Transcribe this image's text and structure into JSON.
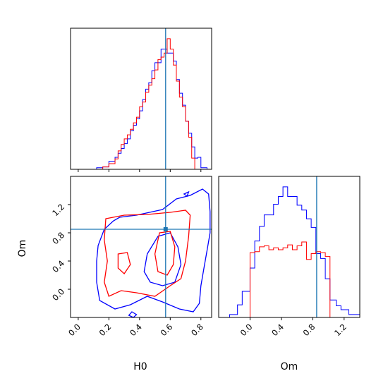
{
  "chart_data": {
    "type": "corner",
    "parameters": [
      "H0",
      "Om"
    ],
    "truths": {
      "H0": 0.57,
      "Om": 0.85
    },
    "colors": {
      "blue": "#0000ff",
      "red": "#ff0000",
      "truth": "#1f77b4"
    },
    "H0": {
      "xlabel": "H0",
      "ticks": [
        "0.0",
        "0.2",
        "0.4",
        "0.6",
        "0.8"
      ],
      "xlim": [
        -0.05,
        0.87
      ],
      "bin_edges": [
        0.12,
        0.16,
        0.2,
        0.24,
        0.26,
        0.28,
        0.3,
        0.32,
        0.34,
        0.36,
        0.38,
        0.4,
        0.42,
        0.44,
        0.46,
        0.48,
        0.5,
        0.52,
        0.54,
        0.56,
        0.58,
        0.6,
        0.62,
        0.64,
        0.66,
        0.68,
        0.7,
        0.72,
        0.74,
        0.76,
        0.78,
        0.8,
        0.84
      ],
      "series": [
        {
          "color": "blue",
          "counts": [
            0.2,
            0.3,
            1.0,
            1.5,
            2.0,
            2.6,
            3.2,
            3.8,
            4.8,
            5.5,
            6.3,
            7.3,
            8.7,
            10.0,
            10.8,
            12.3,
            13.3,
            13.3,
            15.0,
            15.0,
            14.5,
            14.5,
            13.5,
            11.2,
            9.5,
            8.0,
            6.0,
            4.5,
            2.8,
            1.4,
            1.5,
            0.2
          ]
        },
        {
          "color": "red",
          "counts": [
            0.0,
            0.3,
            0.7,
            1.3,
            2.3,
            3.1,
            3.8,
            4.3,
            5.0,
            5.8,
            6.5,
            7.8,
            8.4,
            9.6,
            10.5,
            11.3,
            12.4,
            13.7,
            14.0,
            14.5,
            16.3,
            15.0,
            13.0,
            11.0,
            9.0,
            7.8,
            6.0,
            4.0,
            1.4,
            0.0,
            0.0,
            0.0
          ]
        }
      ]
    },
    "Om": {
      "xlabel": "Om",
      "ylabel": "Om",
      "ticks": [
        "0.0",
        "0.4",
        "0.8",
        "1.2"
      ],
      "xlim": [
        -0.4,
        1.4
      ],
      "bin_edges": [
        -0.26,
        -0.16,
        -0.1,
        -0.02,
        0.0,
        0.06,
        0.12,
        0.18,
        0.24,
        0.3,
        0.36,
        0.42,
        0.48,
        0.54,
        0.6,
        0.66,
        0.72,
        0.78,
        0.84,
        0.9,
        0.96,
        1.02,
        1.1,
        1.16,
        1.26,
        1.4
      ],
      "series": [
        {
          "color": "blue",
          "counts": [
            0.3,
            1.3,
            2.7,
            2.7,
            5.1,
            7.9,
            9.4,
            10.6,
            10.6,
            11.7,
            12.5,
            13.5,
            12.5,
            12.5,
            11.6,
            11.1,
            10.2,
            9.3,
            6.6,
            6.1,
            4.0,
            1.8,
            1.2,
            0.8,
            0.3
          ]
        },
        {
          "color": "red",
          "counts": [
            0.0,
            0.0,
            0.0,
            0.0,
            6.7,
            6.8,
            7.3,
            7.4,
            7.0,
            7.2,
            7.0,
            7.2,
            7.5,
            7.0,
            7.4,
            7.8,
            6.0,
            6.6,
            6.8,
            6.7,
            6.3,
            0.0,
            0.0,
            0.0,
            0.0
          ]
        }
      ]
    },
    "joint": {
      "xlabel": "H0",
      "ylabel": "Om",
      "x_ticks": [
        "0.0",
        "0.2",
        "0.4",
        "0.6",
        "0.8"
      ],
      "y_ticks": [
        "0.0",
        "0.4",
        "0.8",
        "1.2"
      ],
      "xlim": [
        -0.05,
        0.87
      ],
      "ylim": [
        -0.4,
        1.6
      ],
      "contours": [
        {
          "color": "blue",
          "points": [
            [
              0.27,
              1.02
            ],
            [
              0.38,
              1.05
            ],
            [
              0.55,
              1.13
            ],
            [
              0.64,
              1.28
            ],
            [
              0.73,
              1.33
            ],
            [
              0.81,
              1.42
            ],
            [
              0.85,
              1.35
            ],
            [
              0.86,
              1.1
            ],
            [
              0.86,
              0.8
            ],
            [
              0.84,
              0.55
            ],
            [
              0.82,
              0.3
            ],
            [
              0.8,
              0.05
            ],
            [
              0.79,
              -0.2
            ],
            [
              0.75,
              -0.32
            ],
            [
              0.66,
              -0.28
            ],
            [
              0.55,
              -0.18
            ],
            [
              0.45,
              -0.1
            ],
            [
              0.34,
              -0.22
            ],
            [
              0.24,
              -0.28
            ],
            [
              0.14,
              -0.16
            ],
            [
              0.12,
              0.1
            ],
            [
              0.12,
              0.4
            ],
            [
              0.13,
              0.62
            ],
            [
              0.17,
              0.85
            ],
            [
              0.23,
              0.97
            ],
            [
              0.27,
              1.02
            ]
          ]
        },
        {
          "color": "blue",
          "points": [
            [
              0.52,
              0.75
            ],
            [
              0.6,
              0.8
            ],
            [
              0.65,
              0.6
            ],
            [
              0.67,
              0.35
            ],
            [
              0.63,
              0.1
            ],
            [
              0.55,
              0.05
            ],
            [
              0.47,
              0.1
            ],
            [
              0.43,
              0.25
            ],
            [
              0.45,
              0.5
            ],
            [
              0.52,
              0.75
            ]
          ]
        },
        {
          "color": "blue",
          "points": [
            [
              0.35,
              -0.32
            ],
            [
              0.38,
              -0.36
            ],
            [
              0.36,
              -0.4
            ],
            [
              0.33,
              -0.37
            ],
            [
              0.35,
              -0.32
            ]
          ]
        },
        {
          "color": "blue",
          "points": [
            [
              0.69,
              1.35
            ],
            [
              0.72,
              1.38
            ],
            [
              0.71,
              1.32
            ],
            [
              0.69,
              1.35
            ]
          ]
        },
        {
          "color": "red",
          "points": [
            [
              0.18,
              1.0
            ],
            [
              0.3,
              1.05
            ],
            [
              0.45,
              1.06
            ],
            [
              0.6,
              1.09
            ],
            [
              0.7,
              1.12
            ],
            [
              0.73,
              1.05
            ],
            [
              0.72,
              0.75
            ],
            [
              0.7,
              0.4
            ],
            [
              0.67,
              0.15
            ],
            [
              0.6,
              0.05
            ],
            [
              0.5,
              -0.1
            ],
            [
              0.38,
              -0.05
            ],
            [
              0.28,
              -0.02
            ],
            [
              0.2,
              -0.1
            ],
            [
              0.17,
              0.1
            ],
            [
              0.19,
              0.4
            ],
            [
              0.17,
              0.7
            ],
            [
              0.18,
              1.0
            ]
          ]
        },
        {
          "color": "red",
          "points": [
            [
              0.53,
              0.8
            ],
            [
              0.6,
              0.82
            ],
            [
              0.63,
              0.6
            ],
            [
              0.62,
              0.35
            ],
            [
              0.58,
              0.2
            ],
            [
              0.52,
              0.25
            ],
            [
              0.5,
              0.5
            ],
            [
              0.53,
              0.8
            ]
          ]
        },
        {
          "color": "red",
          "points": [
            [
              0.26,
              0.5
            ],
            [
              0.32,
              0.52
            ],
            [
              0.34,
              0.35
            ],
            [
              0.3,
              0.22
            ],
            [
              0.26,
              0.3
            ],
            [
              0.26,
              0.5
            ]
          ]
        }
      ]
    }
  }
}
